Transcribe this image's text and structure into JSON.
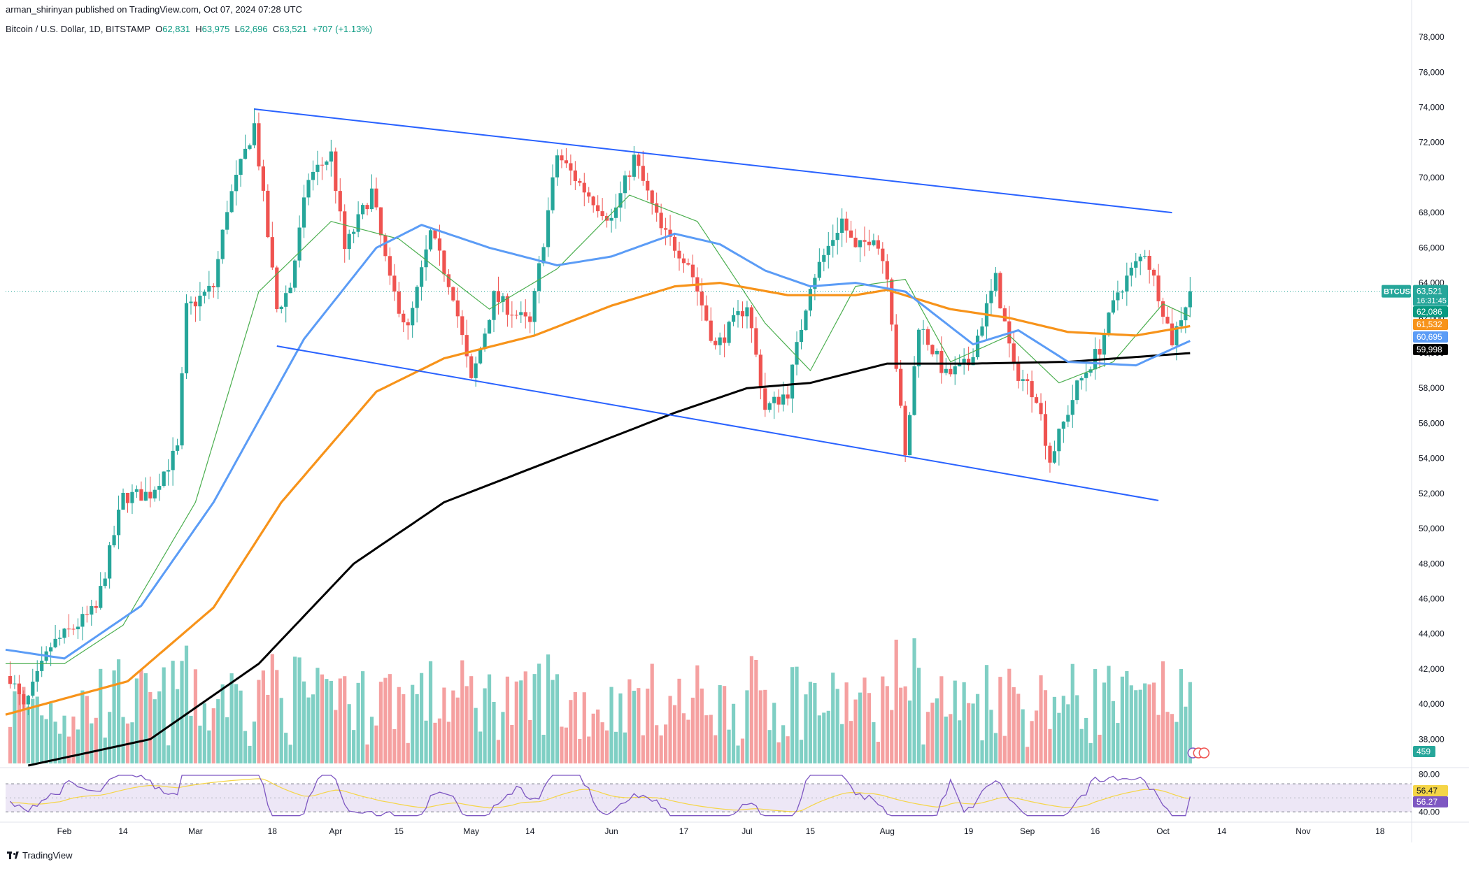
{
  "header": {
    "publisher": "arman_shirinyan published on TradingView.com, Oct 07, 2024 07:28 UTC",
    "symbol": "Bitcoin / U.S. Dollar, 1D, BITSTAMP",
    "open_label": "O",
    "open": "62,831",
    "high_label": "H",
    "high": "63,975",
    "low_label": "L",
    "low": "62,696",
    "close_label": "C",
    "close": "63,521",
    "change": "+707 (+1.13%)"
  },
  "footer": {
    "brand": "TradingView"
  },
  "colors": {
    "up": "#26a69a",
    "down": "#ef5350",
    "vol_up": "#7fcfc4",
    "vol_down": "#f5a0a0",
    "ma20": "#4caf50",
    "ma50": "#5b9cf6",
    "ma100": "#f7931a",
    "ma200": "#000000",
    "channel": "#2962ff",
    "rsi": "#7e57c2",
    "rsi_ma": "#f5d547",
    "rsi_band": "#ede7f6"
  },
  "chart_data": [
    {
      "type": "candlestick",
      "title": "Bitcoin / U.S. Dollar, 1D, BITSTAMP",
      "x_axis": {
        "start": "2024-01-19",
        "end": "2024-11-25",
        "tick_labels": [
          "Feb",
          "14",
          "Mar",
          "18",
          "Apr",
          "15",
          "May",
          "14",
          "Jun",
          "17",
          "Jul",
          "15",
          "Aug",
          "19",
          "Sep",
          "16",
          "Oct",
          "14",
          "Nov",
          "18"
        ]
      },
      "y_axis": {
        "min": 36500,
        "max": 79000,
        "tick_labels": [
          "38,000",
          "40,000",
          "42,000",
          "44,000",
          "46,000",
          "48,000",
          "50,000",
          "52,000",
          "54,000",
          "56,000",
          "58,000",
          "60,000",
          "62,000",
          "64,000",
          "66,000",
          "68,000",
          "70,000",
          "72,000",
          "74,000",
          "76,000",
          "78,000"
        ]
      },
      "price_keypoints": [
        [
          "2024-01-20",
          41600
        ],
        [
          "2024-01-23",
          39700
        ],
        [
          "2024-01-29",
          43300
        ],
        [
          "2024-02-08",
          45400
        ],
        [
          "2024-02-14",
          51800
        ],
        [
          "2024-02-20",
          52000
        ],
        [
          "2024-02-26",
          54500
        ],
        [
          "2024-02-28",
          62500
        ],
        [
          "2024-03-05",
          63800
        ],
        [
          "2024-03-08",
          68300
        ],
        [
          "2024-03-14",
          73000
        ],
        [
          "2024-03-19",
          62500
        ],
        [
          "2024-03-22",
          63800
        ],
        [
          "2024-03-26",
          70000
        ],
        [
          "2024-03-31",
          71300
        ],
        [
          "2024-04-03",
          65900
        ],
        [
          "2024-04-09",
          69200
        ],
        [
          "2024-04-13",
          64000
        ],
        [
          "2024-04-17",
          61300
        ],
        [
          "2024-04-22",
          66800
        ],
        [
          "2024-04-27",
          63400
        ],
        [
          "2024-05-01",
          58300
        ],
        [
          "2024-05-06",
          63200
        ],
        [
          "2024-05-14",
          61600
        ],
        [
          "2024-05-20",
          71300
        ],
        [
          "2024-05-26",
          69300
        ],
        [
          "2024-06-01",
          67600
        ],
        [
          "2024-06-06",
          71100
        ],
        [
          "2024-06-12",
          67000
        ],
        [
          "2024-06-18",
          65200
        ],
        [
          "2024-06-24",
          60300
        ],
        [
          "2024-07-01",
          62800
        ],
        [
          "2024-07-05",
          56800
        ],
        [
          "2024-07-10",
          57800
        ],
        [
          "2024-07-15",
          64000
        ],
        [
          "2024-07-22",
          67600
        ],
        [
          "2024-07-25",
          65800
        ],
        [
          "2024-07-29",
          66800
        ],
        [
          "2024-08-01",
          64600
        ],
        [
          "2024-08-05",
          54000
        ],
        [
          "2024-08-08",
          61700
        ],
        [
          "2024-08-14",
          58700
        ],
        [
          "2024-08-19",
          59400
        ],
        [
          "2024-08-25",
          64200
        ],
        [
          "2024-08-29",
          59100
        ],
        [
          "2024-09-03",
          57600
        ],
        [
          "2024-09-06",
          53900
        ],
        [
          "2024-09-12",
          58100
        ],
        [
          "2024-09-17",
          60300
        ],
        [
          "2024-09-21",
          63500
        ],
        [
          "2024-09-27",
          65800
        ],
        [
          "2024-09-30",
          63400
        ],
        [
          "2024-10-03",
          60700
        ],
        [
          "2024-10-07",
          63521
        ]
      ],
      "moving_averages": [
        {
          "period": 20,
          "color": "#4caf50",
          "last": "62,086"
        },
        {
          "period": 100,
          "color": "#f7931a",
          "last": "61,532"
        },
        {
          "period": 50,
          "color": "#5b9cf6",
          "last": "60,695"
        },
        {
          "period": 200,
          "color": "#000000",
          "last": "59,998"
        }
      ],
      "ma_keypoints": {
        "ma50": [
          [
            "2024-01-19",
            43100
          ],
          [
            "2024-02-01",
            42600
          ],
          [
            "2024-02-18",
            45600
          ],
          [
            "2024-03-05",
            51500
          ],
          [
            "2024-03-25",
            60800
          ],
          [
            "2024-04-10",
            66000
          ],
          [
            "2024-04-20",
            67300
          ],
          [
            "2024-05-05",
            66000
          ],
          [
            "2024-05-20",
            65000
          ],
          [
            "2024-06-01",
            65500
          ],
          [
            "2024-06-15",
            66800
          ],
          [
            "2024-06-25",
            66200
          ],
          [
            "2024-07-05",
            64700
          ],
          [
            "2024-07-15",
            63800
          ],
          [
            "2024-07-25",
            64000
          ],
          [
            "2024-08-05",
            63500
          ],
          [
            "2024-08-20",
            60500
          ],
          [
            "2024-08-30",
            61300
          ],
          [
            "2024-09-10",
            59500
          ],
          [
            "2024-09-25",
            59300
          ],
          [
            "2024-10-07",
            60695
          ]
        ],
        "ma100": [
          [
            "2024-01-19",
            39400
          ],
          [
            "2024-02-15",
            41300
          ],
          [
            "2024-03-05",
            45500
          ],
          [
            "2024-03-20",
            51500
          ],
          [
            "2024-04-10",
            57800
          ],
          [
            "2024-04-25",
            59700
          ],
          [
            "2024-05-15",
            61000
          ],
          [
            "2024-06-01",
            62700
          ],
          [
            "2024-06-15",
            63800
          ],
          [
            "2024-06-25",
            64000
          ],
          [
            "2024-07-10",
            63300
          ],
          [
            "2024-07-25",
            63300
          ],
          [
            "2024-08-01",
            63600
          ],
          [
            "2024-08-15",
            62500
          ],
          [
            "2024-08-28",
            62000
          ],
          [
            "2024-09-10",
            61200
          ],
          [
            "2024-09-25",
            61000
          ],
          [
            "2024-10-07",
            61532
          ]
        ],
        "ma200": [
          [
            "2024-01-24",
            36500
          ],
          [
            "2024-02-20",
            38000
          ],
          [
            "2024-03-15",
            42300
          ],
          [
            "2024-04-05",
            48000
          ],
          [
            "2024-04-25",
            51500
          ],
          [
            "2024-05-20",
            54000
          ],
          [
            "2024-06-15",
            56600
          ],
          [
            "2024-07-01",
            58000
          ],
          [
            "2024-07-15",
            58300
          ],
          [
            "2024-08-01",
            59400
          ],
          [
            "2024-08-20",
            59400
          ],
          [
            "2024-09-10",
            59500
          ],
          [
            "2024-10-07",
            59998
          ]
        ],
        "ma20": [
          [
            "2024-01-19",
            42300
          ],
          [
            "2024-02-01",
            42300
          ],
          [
            "2024-02-14",
            44500
          ],
          [
            "2024-03-01",
            51500
          ],
          [
            "2024-03-15",
            63500
          ],
          [
            "2024-03-31",
            67500
          ],
          [
            "2024-04-15",
            66500
          ],
          [
            "2024-05-05",
            62500
          ],
          [
            "2024-05-20",
            64800
          ],
          [
            "2024-06-05",
            69000
          ],
          [
            "2024-06-20",
            67500
          ],
          [
            "2024-07-05",
            61700
          ],
          [
            "2024-07-15",
            59000
          ],
          [
            "2024-07-25",
            63800
          ],
          [
            "2024-08-05",
            64200
          ],
          [
            "2024-08-15",
            59500
          ],
          [
            "2024-08-28",
            61000
          ],
          [
            "2024-09-08",
            58300
          ],
          [
            "2024-09-20",
            59500
          ],
          [
            "2024-10-01",
            62800
          ],
          [
            "2024-10-07",
            62086
          ]
        ]
      },
      "channel_lines": [
        {
          "from": [
            "2024-03-14",
            73900
          ],
          "to": [
            "2024-10-03",
            68000
          ]
        },
        {
          "from": [
            "2024-03-19",
            60400
          ],
          "to": [
            "2024-09-30",
            51600
          ]
        }
      ],
      "last_price": {
        "symbol": "BTCUSD",
        "value": "63,521",
        "countdown": "16:31:45"
      }
    },
    {
      "type": "bar",
      "title": "Volume",
      "value_label": "459",
      "note": "daily volume bars coloured by candle direction"
    },
    {
      "type": "line",
      "title": "RSI",
      "y_axis": {
        "min": 35,
        "max": 82,
        "tick_labels": [
          "80.00",
          "40.00"
        ]
      },
      "bands": [
        40,
        70
      ],
      "last": {
        "rsi": "56.27",
        "rsi_ma": "56.47"
      }
    }
  ]
}
